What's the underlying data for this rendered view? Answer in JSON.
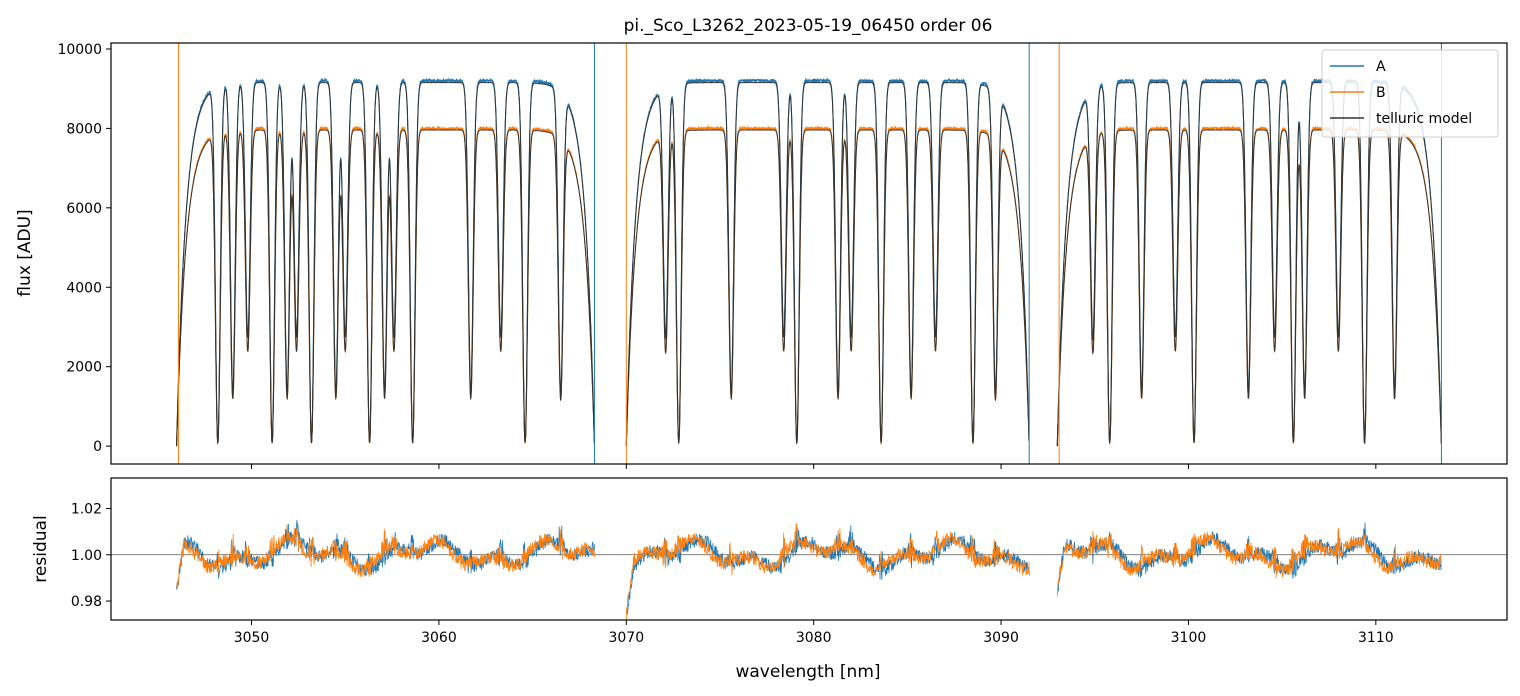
{
  "chart_data": [
    {
      "type": "line",
      "title": "pi._Sco_L3262_2023-05-19_06450  order 06",
      "xlabel": "",
      "ylabel": "flux [ADU]",
      "xlim": [
        3042.5,
        3117.0
      ],
      "ylim": [
        -450,
        10150
      ],
      "x_ticks": [
        3050,
        3060,
        3070,
        3080,
        3090,
        3100,
        3110
      ],
      "y_ticks": [
        0,
        2000,
        4000,
        6000,
        8000,
        10000
      ],
      "y_tick_labels": [
        "0",
        "2000",
        "4000",
        "6000",
        "8000",
        "10000"
      ],
      "legend": {
        "position": "top-right",
        "entries": [
          {
            "label": "A",
            "color": "#1f77b4"
          },
          {
            "label": "B",
            "color": "#ff7f0e"
          },
          {
            "label": "telluric model",
            "color": "#333333"
          }
        ]
      },
      "segments": [
        [
          3046.0,
          3068.3
        ],
        [
          3070.0,
          3091.5
        ],
        [
          3093.0,
          3113.5
        ]
      ],
      "series": [
        {
          "name": "A",
          "color": "#1f77b4",
          "continuum": 9200
        },
        {
          "name": "B",
          "color": "#ff7f0e",
          "continuum": 8000
        },
        {
          "name": "telluric model",
          "color": "#333333"
        }
      ],
      "absorption_lines": [
        3048.2,
        3049.0,
        3049.8,
        3051.1,
        3051.9,
        3052.4,
        3053.2,
        3054.5,
        3055.0,
        3056.3,
        3057.1,
        3057.6,
        3058.6,
        3061.7,
        3063.3,
        3064.6,
        3066.5,
        3072.1,
        3072.8,
        3075.6,
        3078.4,
        3079.1,
        3081.3,
        3082.0,
        3083.6,
        3085.2,
        3086.5,
        3088.5,
        3089.7,
        3094.9,
        3095.8,
        3097.5,
        3099.3,
        3100.3,
        3103.2,
        3104.6,
        3105.6,
        3106.2,
        3108.0,
        3109.4,
        3111.0
      ],
      "spikes": [
        3046.1,
        3068.3,
        3070.0,
        3091.5,
        3093.1,
        3113.5
      ]
    },
    {
      "type": "line",
      "title": "",
      "xlabel": "wavelength [nm]",
      "ylabel": "residual",
      "xlim": [
        3042.5,
        3117.0
      ],
      "ylim": [
        0.9718,
        1.0332
      ],
      "x_ticks": [
        3050,
        3060,
        3070,
        3080,
        3090,
        3100,
        3110
      ],
      "x_tick_labels": [
        "3050",
        "3060",
        "3070",
        "3080",
        "3090",
        "3100",
        "3110"
      ],
      "y_ticks": [
        0.98,
        1.0,
        1.02
      ],
      "y_tick_labels": [
        "0.98",
        "1.00",
        "1.02"
      ],
      "reference_line": 1.0,
      "series": [
        {
          "name": "A",
          "color": "#1f77b4"
        },
        {
          "name": "B",
          "color": "#ff7f0e"
        }
      ]
    }
  ]
}
